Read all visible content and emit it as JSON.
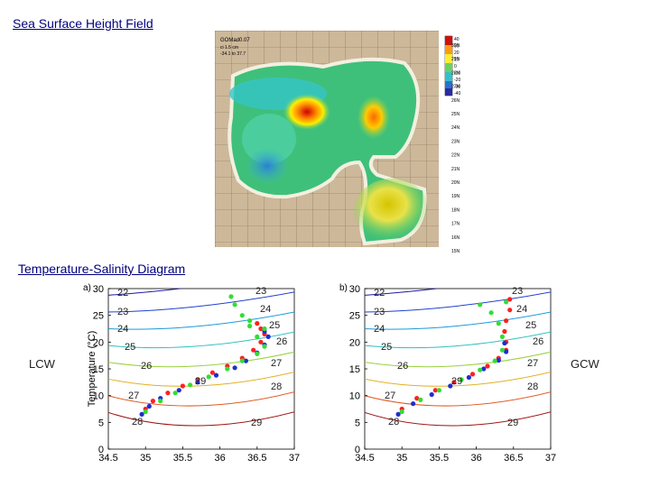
{
  "slide": {
    "title1": "Sea Surface Height Field",
    "title2": "Temperature-Salinity Diagram",
    "label_left": "LCW",
    "label_right": "GCW"
  },
  "map": {
    "model_label": "GOMаd0.07",
    "ci_label": "ci 1.5 cm",
    "range_label": "-34.1 to 37.7",
    "colorbar_ticks": [
      "40",
      "30",
      "20",
      "10",
      "0",
      "-10",
      "-20",
      "-30",
      "-40"
    ],
    "lat_labels": [
      "30N",
      "29N",
      "28N",
      "27N",
      "26N",
      "25N",
      "24N",
      "23N",
      "22N",
      "21N",
      "20N",
      "19N",
      "18N",
      "17N",
      "16N",
      "15N"
    ]
  },
  "chart_data": [
    {
      "type": "scatter",
      "panel_label": "a)",
      "ylabel": "Temperature (°C)",
      "xlim": [
        34.5,
        37
      ],
      "ylim": [
        0,
        30
      ],
      "xticks": [
        "34.5",
        "35",
        "35.5",
        "36",
        "36.5",
        "37"
      ],
      "yticks": [
        "0",
        "5",
        "10",
        "15",
        "20",
        "25",
        "30"
      ],
      "density_labels": [
        "22",
        "23",
        "24",
        "25",
        "26",
        "27",
        "28",
        "29"
      ],
      "inner_labels": [
        "23",
        "24",
        "25",
        "26",
        "27",
        "28",
        "29"
      ],
      "series": [
        {
          "color": "#ff2020",
          "points": [
            [
              35.0,
              7.5
            ],
            [
              35.1,
              9
            ],
            [
              35.3,
              10.5
            ],
            [
              35.5,
              11.8
            ],
            [
              35.7,
              13
            ],
            [
              35.9,
              14.3
            ],
            [
              36.1,
              15.5
            ],
            [
              36.3,
              17
            ],
            [
              36.45,
              18.5
            ],
            [
              36.55,
              20
            ],
            [
              36.6,
              21.5
            ],
            [
              36.55,
              22.5
            ],
            [
              36.5,
              23.5
            ]
          ]
        },
        {
          "color": "#1f2fd0",
          "points": [
            [
              34.95,
              6.5
            ],
            [
              35.05,
              8
            ],
            [
              35.2,
              9.5
            ],
            [
              35.45,
              11
            ],
            [
              35.7,
              12.5
            ],
            [
              35.95,
              13.8
            ],
            [
              36.2,
              15.2
            ],
            [
              36.35,
              16.5
            ],
            [
              36.5,
              18
            ],
            [
              36.6,
              19.5
            ],
            [
              36.65,
              21
            ],
            [
              36.6,
              22
            ]
          ]
        },
        {
          "color": "#33dd33",
          "points": [
            [
              35.0,
              7
            ],
            [
              35.2,
              9
            ],
            [
              35.4,
              10.5
            ],
            [
              35.6,
              12
            ],
            [
              35.85,
              13.5
            ],
            [
              36.1,
              15
            ],
            [
              36.3,
              16.5
            ],
            [
              36.5,
              17.8
            ],
            [
              36.6,
              19.2
            ],
            [
              36.5,
              21
            ],
            [
              36.4,
              23
            ],
            [
              36.3,
              25
            ],
            [
              36.2,
              27
            ],
            [
              36.15,
              28.5
            ],
            [
              36.4,
              24
            ],
            [
              36.6,
              22.5
            ]
          ]
        }
      ]
    },
    {
      "type": "scatter",
      "panel_label": "b)",
      "xlim": [
        34.5,
        37
      ],
      "ylim": [
        0,
        30
      ],
      "xticks": [
        "34.5",
        "35",
        "35.5",
        "36",
        "36.5",
        "37"
      ],
      "yticks": [
        "0",
        "5",
        "10",
        "15",
        "20",
        "25",
        "30"
      ],
      "density_labels": [
        "22",
        "23",
        "24",
        "25",
        "26",
        "27",
        "28",
        "29"
      ],
      "inner_labels": [
        "23",
        "24",
        "25",
        "26",
        "27",
        "28",
        "29"
      ],
      "series": [
        {
          "color": "#ff2020",
          "points": [
            [
              35.0,
              7.5
            ],
            [
              35.2,
              9.5
            ],
            [
              35.45,
              11
            ],
            [
              35.7,
              12.5
            ],
            [
              35.95,
              14
            ],
            [
              36.15,
              15.5
            ],
            [
              36.3,
              17
            ],
            [
              36.4,
              18.5
            ],
            [
              36.4,
              20
            ],
            [
              36.38,
              22
            ],
            [
              36.4,
              24
            ],
            [
              36.45,
              26
            ],
            [
              36.45,
              28
            ]
          ]
        },
        {
          "color": "#1f2fd0",
          "points": [
            [
              34.95,
              6.5
            ],
            [
              35.15,
              8.5
            ],
            [
              35.4,
              10.2
            ],
            [
              35.65,
              11.8
            ],
            [
              35.9,
              13.4
            ],
            [
              36.1,
              15
            ],
            [
              36.3,
              16.6
            ],
            [
              36.4,
              18.2
            ],
            [
              36.38,
              19.8
            ]
          ]
        },
        {
          "color": "#33dd33",
          "points": [
            [
              35.0,
              7
            ],
            [
              35.25,
              9.2
            ],
            [
              35.5,
              11
            ],
            [
              35.8,
              13
            ],
            [
              36.05,
              14.8
            ],
            [
              36.25,
              16.5
            ],
            [
              36.35,
              18.5
            ],
            [
              36.35,
              21
            ],
            [
              36.3,
              23.5
            ],
            [
              36.2,
              25.5
            ],
            [
              36.05,
              27
            ],
            [
              36.4,
              27.5
            ]
          ]
        }
      ]
    }
  ]
}
